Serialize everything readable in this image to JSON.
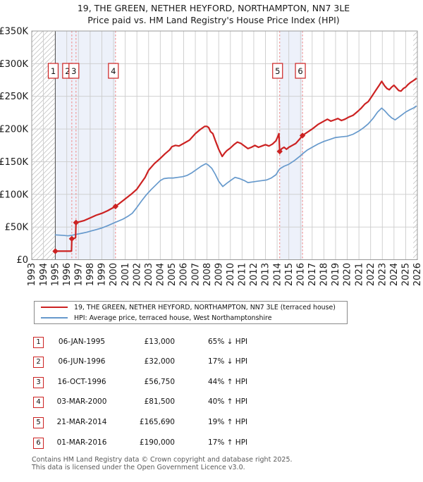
{
  "title": {
    "line1": "19, THE GREEN, NETHER HEYFORD, NORTHAMPTON, NN7 3LE",
    "line2": "Price paid vs. HM Land Registry's House Price Index (HPI)"
  },
  "legend": {
    "items": [
      {
        "label": "19, THE GREEN, NETHER HEYFORD, NORTHAMPTON, NN7 3LE (terraced house)",
        "color": "#cc2222"
      },
      {
        "label": "HPI: Average price, terraced house, West Northamptonshire",
        "color": "#6699cc"
      }
    ]
  },
  "transactions": [
    {
      "num": "1",
      "date": "06-JAN-1995",
      "price": "£13,000",
      "pct": "65%",
      "dir": "↓",
      "ref": "HPI"
    },
    {
      "num": "2",
      "date": "06-JUN-1996",
      "price": "£32,000",
      "pct": "17%",
      "dir": "↓",
      "ref": "HPI"
    },
    {
      "num": "3",
      "date": "16-OCT-1996",
      "price": "£56,750",
      "pct": "44%",
      "dir": "↑",
      "ref": "HPI"
    },
    {
      "num": "4",
      "date": "03-MAR-2000",
      "price": "£81,500",
      "pct": "40%",
      "dir": "↑",
      "ref": "HPI"
    },
    {
      "num": "5",
      "date": "21-MAR-2014",
      "price": "£165,690",
      "pct": "19%",
      "dir": "↑",
      "ref": "HPI"
    },
    {
      "num": "6",
      "date": "01-MAR-2016",
      "price": "£190,000",
      "pct": "17%",
      "dir": "↑",
      "ref": "HPI"
    }
  ],
  "footer": {
    "line1": "Contains HM Land Registry data © Crown copyright and database right 2025.",
    "line2": "This data is licensed under the Open Government Licence v3.0."
  },
  "colors": {
    "price_line": "#cc2222",
    "hpi_line": "#6699cc",
    "marker": "#cc2222",
    "dashed_event": "#ef8585",
    "band_fill": "#edf1fa",
    "hatch": "#c4c4c4",
    "grid": "#cccccc",
    "border": "#999999",
    "data_start_line": "#555555",
    "box_border": "#cc2222",
    "tick_text": "#1a1a1a"
  },
  "chart_data": {
    "type": "line",
    "xlim": [
      1993,
      2026
    ],
    "ylim_k": [
      0,
      350
    ],
    "grid": true,
    "legend_position": "below",
    "x_tick_years": [
      1993,
      1994,
      1995,
      1996,
      1997,
      1998,
      1999,
      2000,
      2001,
      2002,
      2003,
      2004,
      2005,
      2006,
      2007,
      2008,
      2009,
      2010,
      2011,
      2012,
      2013,
      2014,
      2015,
      2016,
      2017,
      2018,
      2019,
      2020,
      2021,
      2022,
      2023,
      2024,
      2025,
      2026
    ],
    "y_ticks": [
      {
        "value_k": 0,
        "label": "£0"
      },
      {
        "value_k": 50,
        "label": "£50K"
      },
      {
        "value_k": 100,
        "label": "£100K"
      },
      {
        "value_k": 150,
        "label": "£150K"
      },
      {
        "value_k": 200,
        "label": "£200K"
      },
      {
        "value_k": 250,
        "label": "£250K"
      },
      {
        "value_k": 300,
        "label": "£300K"
      },
      {
        "value_k": 350,
        "label": "£350K"
      }
    ],
    "hatch_regions": [
      [
        1993,
        1995.02
      ],
      [
        2025.65,
        2026
      ]
    ],
    "shaded_bands": [
      [
        1995.02,
        2000.17
      ],
      [
        2014.22,
        2016.17
      ]
    ],
    "data_start_year": 1995.02,
    "event_lines": [
      1996.43,
      1996.79,
      2000.17,
      2014.22,
      2016.17
    ],
    "annotation_boxes": [
      {
        "label": "1",
        "year": 1995.02
      },
      {
        "label": "2",
        "year": 1996.43
      },
      {
        "label": "3",
        "year": 1996.79
      },
      {
        "label": "4",
        "year": 2000.17
      },
      {
        "label": "5",
        "year": 2014.22
      },
      {
        "label": "6",
        "year": 2016.17
      }
    ],
    "markers": [
      {
        "n": "1",
        "year": 1995.02,
        "value_k": 13
      },
      {
        "n": "2",
        "year": 1996.43,
        "value_k": 32
      },
      {
        "n": "3",
        "year": 1996.79,
        "value_k": 56.75
      },
      {
        "n": "4",
        "year": 2000.17,
        "value_k": 81.5
      },
      {
        "n": "5",
        "year": 2014.22,
        "value_k": 165.69
      },
      {
        "n": "6",
        "year": 2016.17,
        "value_k": 190
      }
    ],
    "series": [
      {
        "name": "price-paid-hpi-adjusted",
        "color": "#cc2222",
        "width": 2.2,
        "points": [
          [
            1995.02,
            13
          ],
          [
            1996.4,
            13
          ],
          [
            1996.43,
            32
          ],
          [
            1996.6,
            32.5
          ],
          [
            1996.75,
            33.5
          ],
          [
            1996.79,
            56.75
          ],
          [
            1997.1,
            58
          ],
          [
            1997.5,
            60
          ],
          [
            1998,
            64
          ],
          [
            1998.5,
            68
          ],
          [
            1999,
            71
          ],
          [
            1999.5,
            75
          ],
          [
            2000.17,
            81.5
          ],
          [
            2000.5,
            86
          ],
          [
            2001,
            93
          ],
          [
            2001.5,
            100
          ],
          [
            2002,
            108
          ],
          [
            2002.35,
            117
          ],
          [
            2002.7,
            126
          ],
          [
            2003,
            137
          ],
          [
            2003.5,
            147
          ],
          [
            2004,
            155
          ],
          [
            2004.4,
            162
          ],
          [
            2004.8,
            168
          ],
          [
            2005,
            173
          ],
          [
            2005.3,
            175
          ],
          [
            2005.6,
            174
          ],
          [
            2006,
            178
          ],
          [
            2006.5,
            183
          ],
          [
            2007,
            193
          ],
          [
            2007.4,
            199
          ],
          [
            2007.8,
            204
          ],
          [
            2008,
            204
          ],
          [
            2008.15,
            202
          ],
          [
            2008.3,
            196
          ],
          [
            2008.5,
            193
          ],
          [
            2008.7,
            183
          ],
          [
            2009,
            169
          ],
          [
            2009.3,
            158
          ],
          [
            2009.5,
            163
          ],
          [
            2009.7,
            167
          ],
          [
            2010,
            171
          ],
          [
            2010.3,
            176
          ],
          [
            2010.6,
            180
          ],
          [
            2010.9,
            178
          ],
          [
            2011.2,
            174
          ],
          [
            2011.5,
            170
          ],
          [
            2011.8,
            172
          ],
          [
            2012.1,
            175
          ],
          [
            2012.4,
            172
          ],
          [
            2012.7,
            174
          ],
          [
            2013,
            176
          ],
          [
            2013.3,
            174
          ],
          [
            2013.6,
            177
          ],
          [
            2013.9,
            182
          ],
          [
            2014.1,
            190
          ],
          [
            2014.15,
            193
          ],
          [
            2014.22,
            165.69
          ],
          [
            2014.4,
            170
          ],
          [
            2014.6,
            172
          ],
          [
            2014.8,
            169
          ],
          [
            2015,
            172
          ],
          [
            2015.3,
            175
          ],
          [
            2015.6,
            178
          ],
          [
            2015.9,
            184
          ],
          [
            2016.17,
            190
          ],
          [
            2016.5,
            194
          ],
          [
            2017,
            200
          ],
          [
            2017.5,
            207
          ],
          [
            2018,
            212
          ],
          [
            2018.3,
            215
          ],
          [
            2018.6,
            212
          ],
          [
            2018.9,
            214
          ],
          [
            2019.2,
            216
          ],
          [
            2019.5,
            213
          ],
          [
            2019.8,
            215
          ],
          [
            2020.1,
            218
          ],
          [
            2020.5,
            221
          ],
          [
            2020.9,
            227
          ],
          [
            2021.2,
            232
          ],
          [
            2021.5,
            238
          ],
          [
            2021.8,
            242
          ],
          [
            2022.1,
            250
          ],
          [
            2022.4,
            258
          ],
          [
            2022.7,
            266
          ],
          [
            2022.95,
            273
          ],
          [
            2023.2,
            266
          ],
          [
            2023.4,
            262
          ],
          [
            2023.6,
            260
          ],
          [
            2023.8,
            264
          ],
          [
            2024,
            267
          ],
          [
            2024.2,
            263
          ],
          [
            2024.4,
            259
          ],
          [
            2024.6,
            258
          ],
          [
            2024.8,
            262
          ],
          [
            2025,
            264
          ],
          [
            2025.2,
            268
          ],
          [
            2025.4,
            271
          ],
          [
            2025.65,
            274
          ],
          [
            2025.9,
            277
          ]
        ]
      },
      {
        "name": "hpi-average",
        "color": "#6699cc",
        "width": 1.7,
        "points": [
          [
            1995.02,
            38
          ],
          [
            1995.4,
            37.5
          ],
          [
            1995.8,
            37
          ],
          [
            1996.1,
            36.5
          ],
          [
            1996.5,
            37.5
          ],
          [
            1996.9,
            39
          ],
          [
            1997.3,
            40.5
          ],
          [
            1997.7,
            42
          ],
          [
            1998.1,
            44
          ],
          [
            1998.5,
            46
          ],
          [
            1999,
            48.5
          ],
          [
            1999.5,
            52
          ],
          [
            2000,
            56
          ],
          [
            2000.4,
            59
          ],
          [
            2000.8,
            62
          ],
          [
            2001.2,
            66
          ],
          [
            2001.6,
            71
          ],
          [
            2002,
            80
          ],
          [
            2002.4,
            90
          ],
          [
            2002.8,
            99
          ],
          [
            2003.2,
            107
          ],
          [
            2003.6,
            114
          ],
          [
            2004,
            121
          ],
          [
            2004.3,
            124
          ],
          [
            2004.7,
            125
          ],
          [
            2005.1,
            125
          ],
          [
            2005.5,
            126
          ],
          [
            2005.9,
            127
          ],
          [
            2006.3,
            129
          ],
          [
            2006.7,
            133
          ],
          [
            2007.1,
            138
          ],
          [
            2007.5,
            143
          ],
          [
            2007.9,
            147
          ],
          [
            2008.1,
            145
          ],
          [
            2008.4,
            140
          ],
          [
            2008.7,
            131
          ],
          [
            2009,
            120
          ],
          [
            2009.35,
            112
          ],
          [
            2009.7,
            117
          ],
          [
            2010,
            121
          ],
          [
            2010.4,
            126
          ],
          [
            2010.8,
            124
          ],
          [
            2011.2,
            121
          ],
          [
            2011.5,
            118
          ],
          [
            2011.9,
            119
          ],
          [
            2012.3,
            120
          ],
          [
            2012.7,
            121
          ],
          [
            2013.1,
            122
          ],
          [
            2013.5,
            125
          ],
          [
            2013.9,
            130
          ],
          [
            2014.22,
            139
          ],
          [
            2014.6,
            143
          ],
          [
            2015,
            146
          ],
          [
            2015.5,
            152
          ],
          [
            2016,
            159
          ],
          [
            2016.17,
            162
          ],
          [
            2016.6,
            168
          ],
          [
            2017,
            172
          ],
          [
            2017.5,
            177
          ],
          [
            2018,
            181
          ],
          [
            2018.5,
            184
          ],
          [
            2019,
            187
          ],
          [
            2019.5,
            188
          ],
          [
            2020,
            189
          ],
          [
            2020.5,
            192
          ],
          [
            2021,
            197
          ],
          [
            2021.4,
            202
          ],
          [
            2021.8,
            208
          ],
          [
            2022.2,
            216
          ],
          [
            2022.6,
            226
          ],
          [
            2022.95,
            232
          ],
          [
            2023.2,
            228
          ],
          [
            2023.5,
            222
          ],
          [
            2023.8,
            217
          ],
          [
            2024.1,
            214
          ],
          [
            2024.4,
            218
          ],
          [
            2024.7,
            222
          ],
          [
            2025,
            226
          ],
          [
            2025.3,
            229
          ],
          [
            2025.65,
            232
          ],
          [
            2025.9,
            235
          ]
        ]
      }
    ]
  }
}
